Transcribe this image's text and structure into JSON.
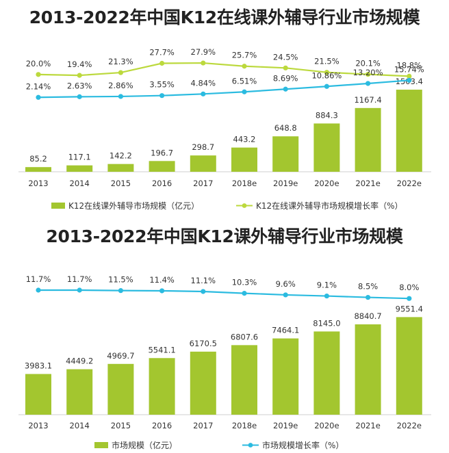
{
  "chart_data": [
    {
      "type": "bar",
      "title": "2013-2022年中国K12在线课外辅导行业市场规模",
      "categories": [
        "2013",
        "2014",
        "2015",
        "2016",
        "2017",
        "2018e",
        "2019e",
        "2020e",
        "2021e",
        "2022e"
      ],
      "series": [
        {
          "name": "K12在线课外辅导市场规模（亿元）",
          "type": "bar",
          "color": "#a3c62f",
          "values": [
            85.2,
            117.1,
            142.2,
            196.7,
            298.7,
            443.2,
            648.8,
            884.3,
            1167.4,
            1503.4
          ],
          "labels": [
            "85.2",
            "117.1",
            "142.2",
            "196.7",
            "298.7",
            "443.2",
            "648.8",
            "884.3",
            "1167.4",
            "1503.4"
          ]
        },
        {
          "name": "K12在线课外辅导市场规模增长率（%）",
          "type": "line",
          "color": "#bcd93d",
          "values": [
            20.0,
            19.4,
            21.3,
            27.7,
            27.9,
            25.7,
            24.5,
            21.5,
            20.1,
            18.8
          ],
          "labels": [
            "20.0%",
            "19.4%",
            "21.3%",
            "27.7%",
            "27.9%",
            "25.7%",
            "24.5%",
            "21.5%",
            "20.1%",
            "18.8%"
          ]
        },
        {
          "type": "line",
          "color": "#2bbbe0",
          "values": [
            2.14,
            2.63,
            2.86,
            3.55,
            4.84,
            6.51,
            8.69,
            10.86,
            13.2,
            15.74
          ],
          "labels": [
            "2.14%",
            "2.63%",
            "2.86%",
            "3.55%",
            "4.84%",
            "6.51%",
            "8.69%",
            "10.86%",
            "13.20%",
            "15.74%"
          ]
        }
      ],
      "legend_position": "bottom"
    },
    {
      "type": "bar",
      "title": "2013-2022年中国K12课外辅导行业市场规模",
      "categories": [
        "2013",
        "2014",
        "2015",
        "2016",
        "2017",
        "2018e",
        "2019e",
        "2020e",
        "2021e",
        "2022e"
      ],
      "series": [
        {
          "name": "市场规模（亿元）",
          "type": "bar",
          "color": "#a3c62f",
          "values": [
            3983.1,
            4449.2,
            4969.7,
            5541.1,
            6170.5,
            6807.6,
            7464.1,
            8145.0,
            8840.7,
            9551.4
          ],
          "labels": [
            "3983.1",
            "4449.2",
            "4969.7",
            "5541.1",
            "6170.5",
            "6807.6",
            "7464.1",
            "8145.0",
            "8840.7",
            "9551.4"
          ]
        },
        {
          "name": "市场规模增长率（%）",
          "type": "line",
          "color": "#2bbbe0",
          "values": [
            11.7,
            11.7,
            11.5,
            11.4,
            11.1,
            10.3,
            9.6,
            9.1,
            8.5,
            8.0
          ],
          "labels": [
            "11.7%",
            "11.7%",
            "11.5%",
            "11.4%",
            "11.1%",
            "10.3%",
            "9.6%",
            "9.1%",
            "8.5%",
            "8.0%"
          ]
        }
      ],
      "legend_position": "bottom"
    }
  ]
}
